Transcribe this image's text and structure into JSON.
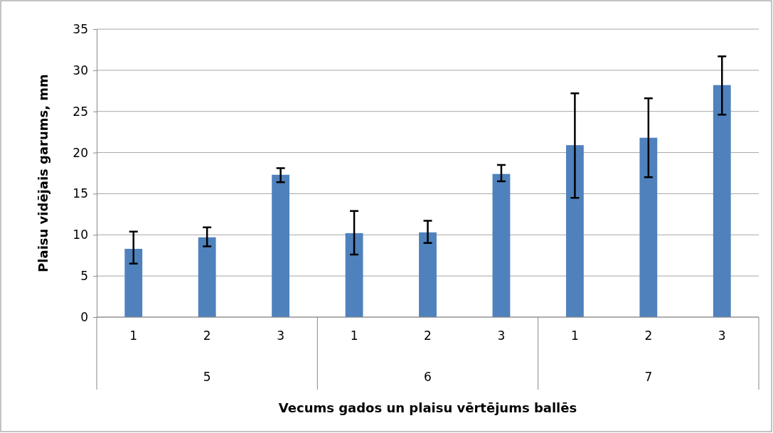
{
  "chart_data": {
    "type": "bar",
    "xlabel": "Vecums gados un plaisu vērtējums ballēs",
    "ylabel": "Plaisu vidējais garums, mm",
    "categories": [
      "1",
      "2",
      "3",
      "1",
      "2",
      "3",
      "1",
      "2",
      "3"
    ],
    "values": [
      8.3,
      9.7,
      17.3,
      10.2,
      10.3,
      17.4,
      20.9,
      21.8,
      28.2
    ],
    "errors": [
      [
        6.5,
        10.4
      ],
      [
        8.6,
        10.9
      ],
      [
        16.4,
        18.1
      ],
      [
        7.6,
        12.9
      ],
      [
        9.0,
        11.7
      ],
      [
        16.5,
        18.5
      ],
      [
        14.5,
        27.2
      ],
      [
        17.0,
        26.6
      ],
      [
        24.6,
        31.7
      ]
    ],
    "color": "#4f81bd",
    "annotations": [
      "5",
      "6",
      "7"
    ],
    "ylim": [
      0,
      35
    ],
    "yticks": [
      0,
      5,
      10,
      15,
      20,
      25,
      30,
      35
    ],
    "grid": "y"
  }
}
